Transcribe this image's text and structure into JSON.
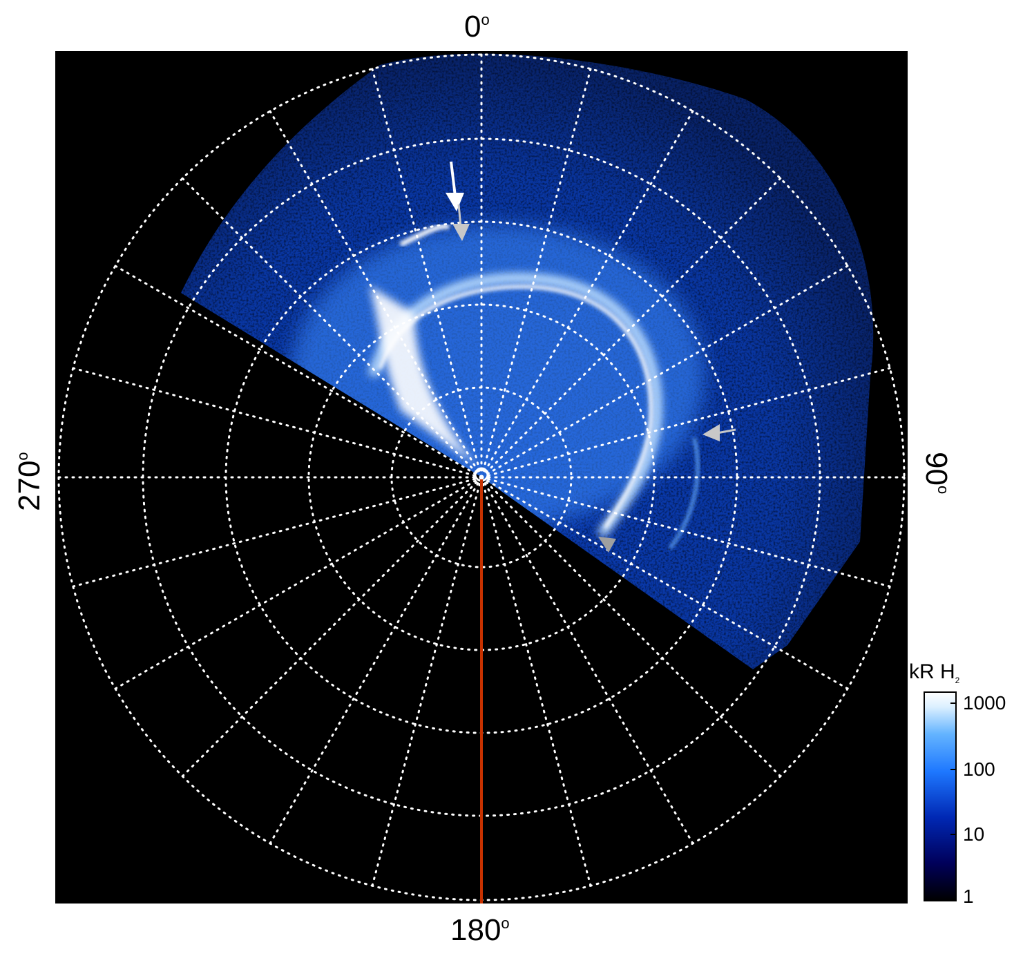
{
  "labels": {
    "top": "0",
    "bottom": "180",
    "left": "270",
    "right": "90",
    "degree_symbol": "o"
  },
  "colorbar": {
    "title_main": "kR H",
    "title_sub": "2",
    "ticks": [
      "1000",
      "100",
      "10",
      "1"
    ],
    "colors": [
      "#000000",
      "#00005a",
      "#0028b4",
      "#1e78ff",
      "#64b4ff",
      "#dcf0ff",
      "#ffffff"
    ]
  },
  "colors": {
    "background": "#000000",
    "grid": "#ffffff",
    "meridian_line": "#c83200",
    "aurora_core": "#ffffff",
    "aurora_glow": "#3c8cff",
    "diffuse": "#0a3cb4",
    "arrow_white": "#ffffff",
    "arrow_gray": "#c8c8c8"
  }
}
